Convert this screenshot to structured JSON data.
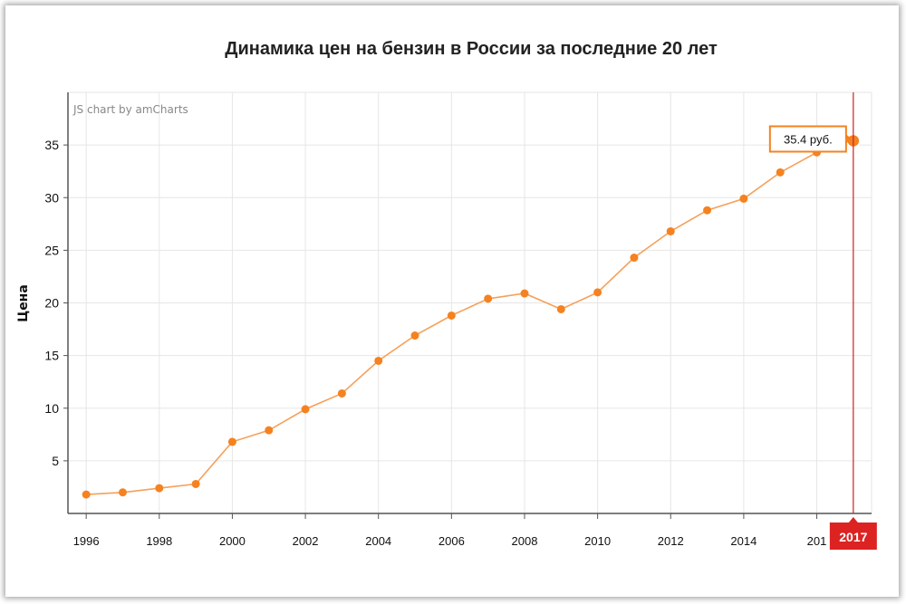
{
  "chart_data": {
    "type": "line",
    "title": "Динамика цен на бензин в России за последние 20 лет",
    "credit": "JS chart by amCharts",
    "xlabel": "",
    "ylabel": "Цена",
    "x": [
      1996,
      1997,
      1998,
      1999,
      2000,
      2001,
      2002,
      2003,
      2004,
      2005,
      2006,
      2007,
      2008,
      2009,
      2010,
      2011,
      2012,
      2013,
      2014,
      2015,
      2016,
      2017
    ],
    "series": [
      {
        "values": [
          1.8,
          2.0,
          2.4,
          2.8,
          6.8,
          7.9,
          9.9,
          11.4,
          14.5,
          16.9,
          18.8,
          20.4,
          20.9,
          19.4,
          21.0,
          24.3,
          26.8,
          28.8,
          29.9,
          32.4,
          34.3,
          35.4
        ]
      }
    ],
    "xticks": [
      "1996",
      "1998",
      "2000",
      "2002",
      "2004",
      "2006",
      "2008",
      "2010",
      "2012",
      "2014",
      "201"
    ],
    "yticks": [
      "5",
      "10",
      "15",
      "20",
      "25",
      "30",
      "35"
    ],
    "xlim": [
      1995.5,
      2017.5
    ],
    "ylim": [
      0,
      40
    ],
    "grid": true,
    "balloon": "35.4 руб.",
    "cursor_label": "2017",
    "colors": {
      "line": "#f5a05a",
      "point": "#f58220",
      "cursor": "#cc2222",
      "cursor_label_bg": "#dd2222",
      "balloon_border": "#f58220",
      "grid": "#e6e6e6",
      "axis": "#555555"
    }
  }
}
